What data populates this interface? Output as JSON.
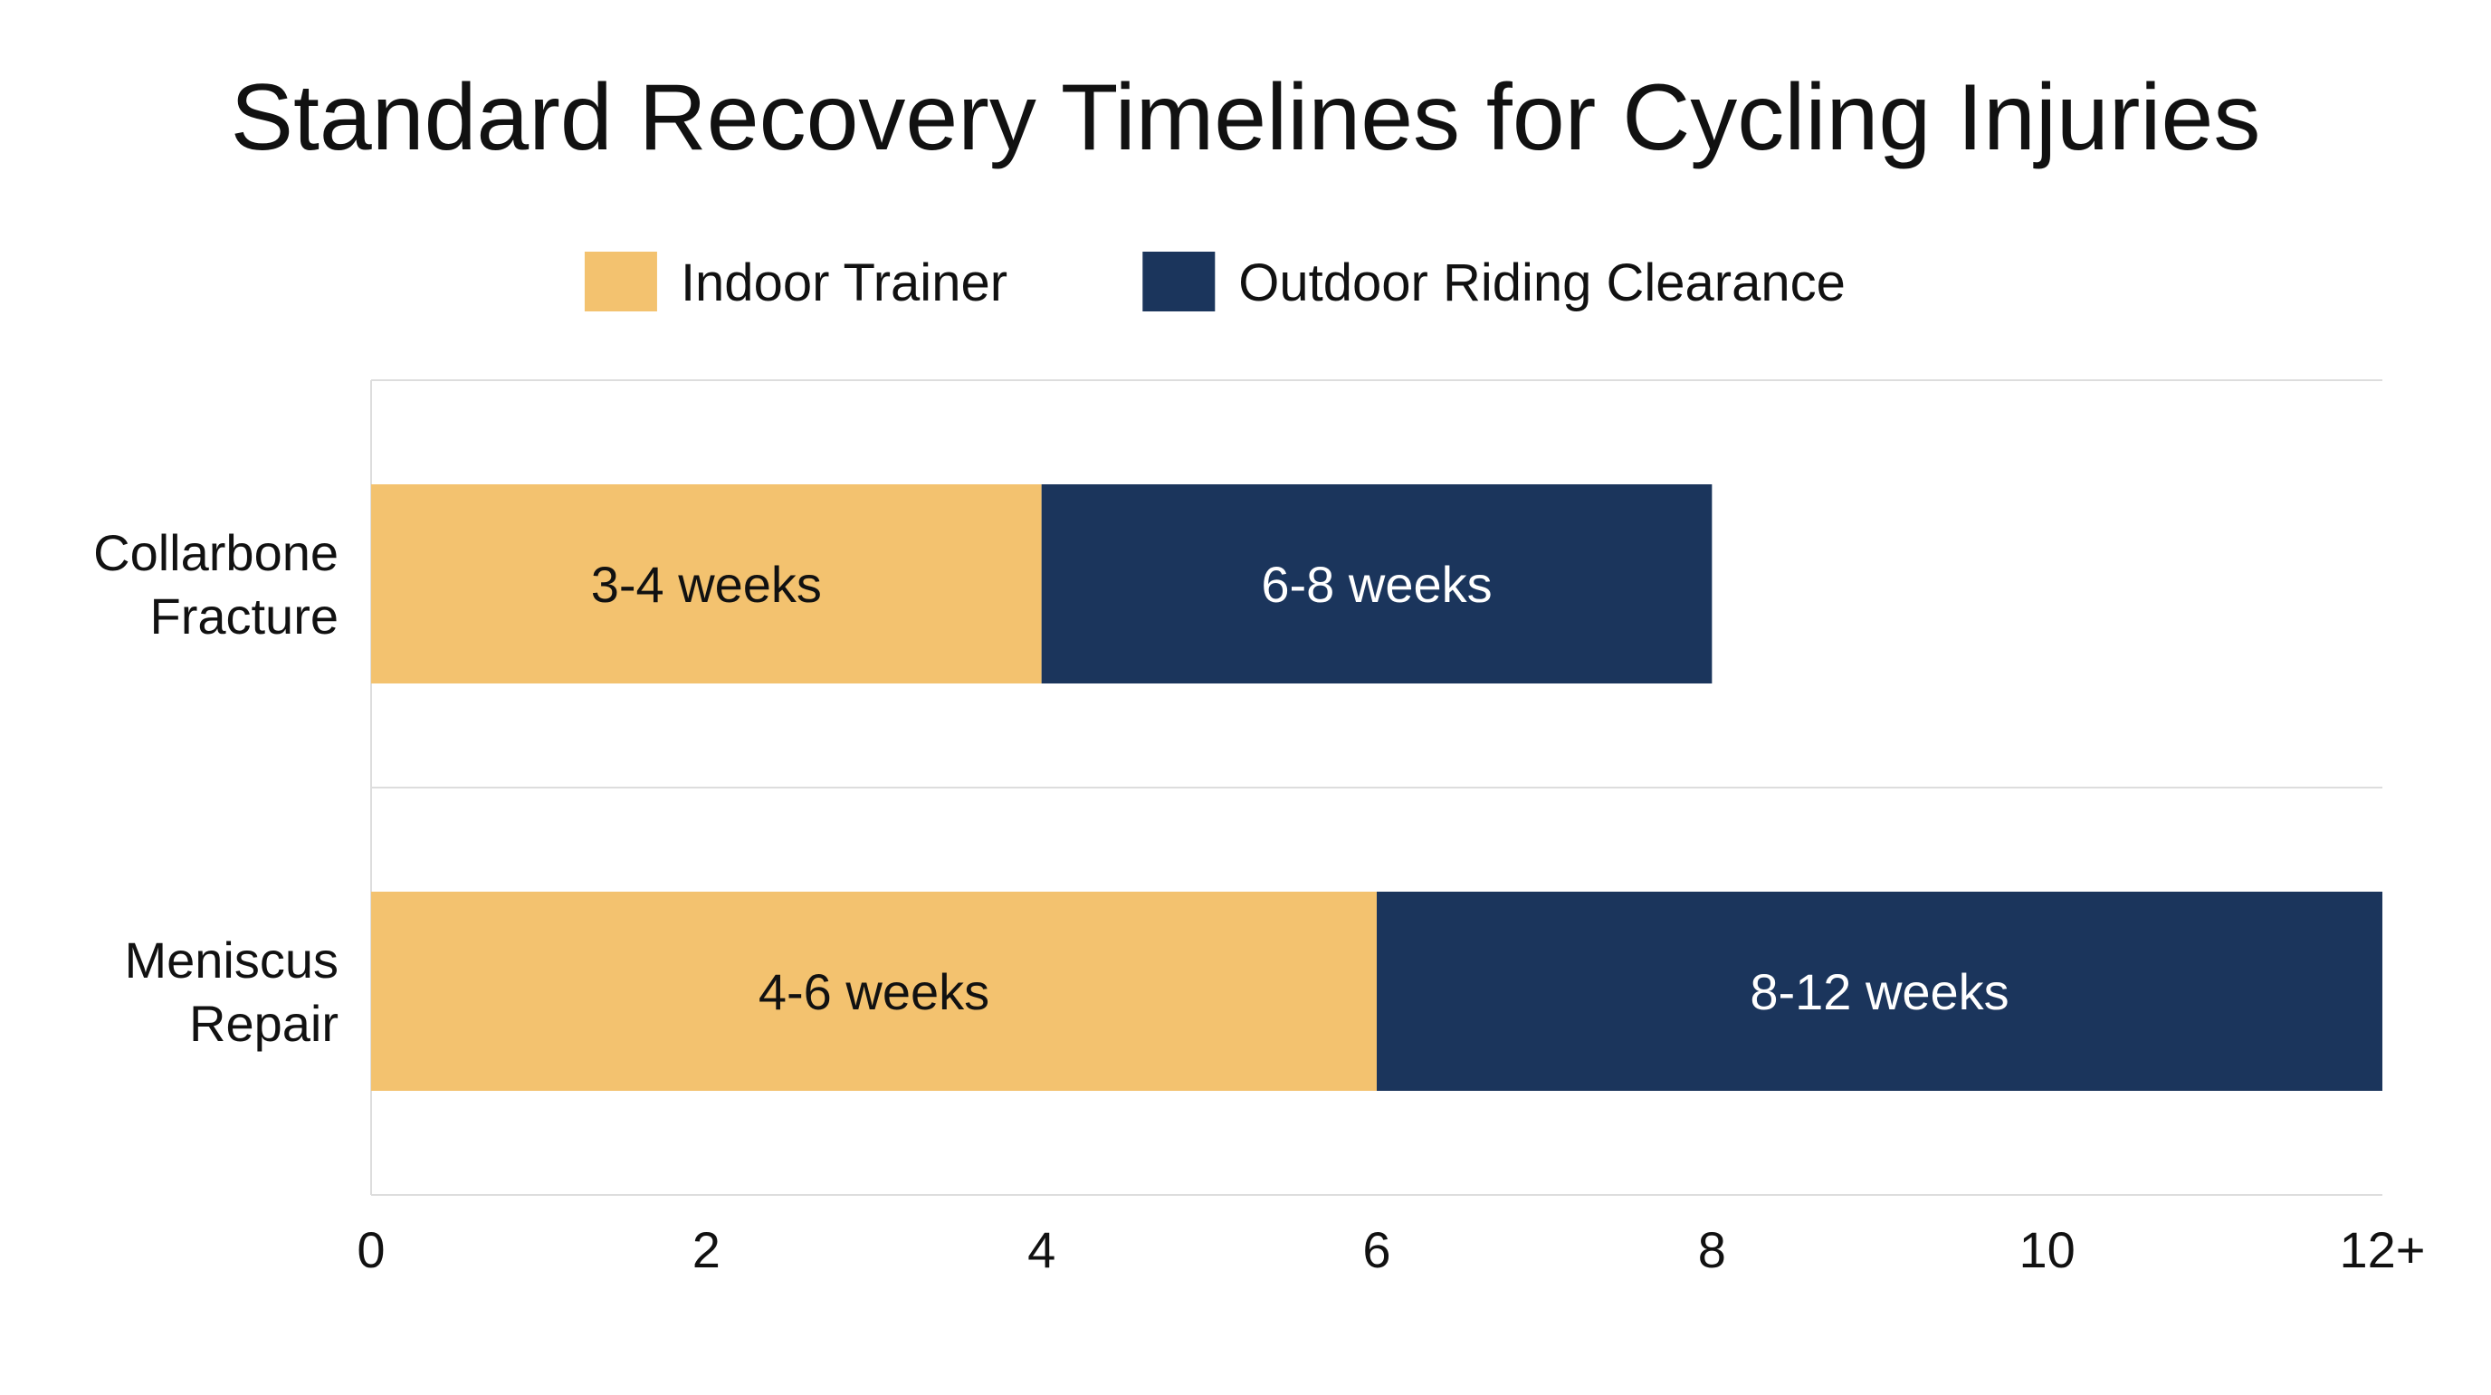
{
  "chart_data": {
    "type": "bar",
    "orientation": "horizontal",
    "stacked": true,
    "title": "Standard Recovery Timelines for Cycling Injuries",
    "categories": [
      [
        "Collarbone",
        "Fracture"
      ],
      [
        "Meniscus",
        "Repair"
      ]
    ],
    "series": [
      {
        "name": "Indoor Trainer",
        "color": "#F3C26F",
        "label_color": "#111111",
        "values": [
          4,
          6
        ],
        "labels": [
          "3-4 weeks",
          "4-6 weeks"
        ]
      },
      {
        "name": "Outdoor Riding Clearance",
        "color": "#1B355C",
        "label_color": "#FFFFFF",
        "values": [
          4,
          6
        ],
        "labels": [
          "6-8 weeks",
          "8-12 weeks"
        ]
      }
    ],
    "xlim": [
      0,
      12
    ],
    "xticks": [
      0,
      2,
      4,
      6,
      8,
      10,
      12
    ],
    "xtick_labels": [
      "0",
      "2",
      "4",
      "6",
      "8",
      "10",
      "12+"
    ],
    "xlabel": "",
    "ylabel": "",
    "legend_position": "top-center",
    "grid": "category separators",
    "grid_color": "#DDDDDD",
    "text_color": "#111111"
  }
}
